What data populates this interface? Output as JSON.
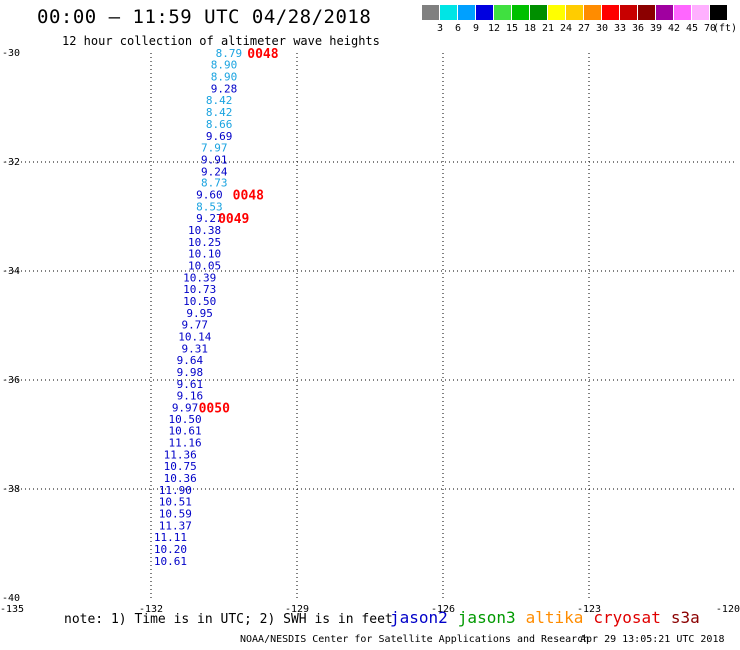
{
  "header": {
    "title": "00:00 – 11:59 UTC 04/28/2018",
    "subtitle": "12 hour collection of altimeter wave heights"
  },
  "color_scale": {
    "unit": "(ft)",
    "steps": [
      {
        "label": "3",
        "color": "#808080"
      },
      {
        "label": "6",
        "color": "#00e5e5"
      },
      {
        "label": "9",
        "color": "#00a0ff"
      },
      {
        "label": "12",
        "color": "#0000e0"
      },
      {
        "label": "15",
        "color": "#40e040"
      },
      {
        "label": "18",
        "color": "#00c000"
      },
      {
        "label": "21",
        "color": "#008f00"
      },
      {
        "label": "24",
        "color": "#ffff00"
      },
      {
        "label": "27",
        "color": "#ffcc00"
      },
      {
        "label": "30",
        "color": "#ff8c00"
      },
      {
        "label": "33",
        "color": "#ff0000"
      },
      {
        "label": "36",
        "color": "#c80000"
      },
      {
        "label": "39",
        "color": "#8b0000"
      },
      {
        "label": "42",
        "color": "#a000a0"
      },
      {
        "label": "45",
        "color": "#ff66ff"
      },
      {
        "label": "70",
        "color": "#ffb0ff"
      },
      {
        "label": "",
        "color": "#000000"
      }
    ]
  },
  "chart_data": {
    "type": "scatter",
    "title": "00:00 – 11:59 UTC 04/28/2018",
    "subtitle": "12 hour collection of altimeter wave heights",
    "x_ticks": [
      "-135",
      "-132",
      "-129",
      "-126",
      "-123",
      "-120"
    ],
    "y_ticks": [
      "-30",
      "-32",
      "-34",
      "-36",
      "-38",
      "-40"
    ],
    "xlim": [
      -135,
      -120
    ],
    "ylim": [
      -40,
      -30
    ],
    "grid": true,
    "colors": {
      "light": "#1aa3e0",
      "dark": "#0000c8",
      "time": "#ff0000"
    },
    "points": [
      {
        "lon": -130.4,
        "lat": -30.0,
        "value": "8.79",
        "band": "light"
      },
      {
        "lon": -130.5,
        "lat": -30.21,
        "value": "8.90",
        "band": "light"
      },
      {
        "lon": -130.5,
        "lat": -30.43,
        "value": "8.90",
        "band": "light"
      },
      {
        "lon": -130.5,
        "lat": -30.65,
        "value": "9.28",
        "band": "dark"
      },
      {
        "lon": -130.6,
        "lat": -30.86,
        "value": "8.42",
        "band": "light"
      },
      {
        "lon": -130.6,
        "lat": -31.08,
        "value": "8.42",
        "band": "light"
      },
      {
        "lon": -130.6,
        "lat": -31.3,
        "value": "8.66",
        "band": "light"
      },
      {
        "lon": -130.6,
        "lat": -31.52,
        "value": "9.69",
        "band": "dark"
      },
      {
        "lon": -130.7,
        "lat": -31.73,
        "value": "7.97",
        "band": "light"
      },
      {
        "lon": -130.7,
        "lat": -31.95,
        "value": "9.91",
        "band": "dark"
      },
      {
        "lon": -130.7,
        "lat": -32.17,
        "value": "9.24",
        "band": "dark"
      },
      {
        "lon": -130.7,
        "lat": -32.38,
        "value": "8.73",
        "band": "light"
      },
      {
        "lon": -130.8,
        "lat": -32.6,
        "value": "9.60",
        "band": "dark"
      },
      {
        "lon": -130.8,
        "lat": -32.82,
        "value": "8.53",
        "band": "light"
      },
      {
        "lon": -130.8,
        "lat": -33.03,
        "value": "9.27",
        "band": "dark"
      },
      {
        "lon": -130.9,
        "lat": -33.25,
        "value": "10.38",
        "band": "dark"
      },
      {
        "lon": -130.9,
        "lat": -33.47,
        "value": "10.25",
        "band": "dark"
      },
      {
        "lon": -130.9,
        "lat": -33.68,
        "value": "10.10",
        "band": "dark"
      },
      {
        "lon": -130.9,
        "lat": -33.9,
        "value": "10.05",
        "band": "dark"
      },
      {
        "lon": -131.0,
        "lat": -34.12,
        "value": "10.39",
        "band": "dark"
      },
      {
        "lon": -131.0,
        "lat": -34.33,
        "value": "10.73",
        "band": "dark"
      },
      {
        "lon": -131.0,
        "lat": -34.55,
        "value": "10.50",
        "band": "dark"
      },
      {
        "lon": -131.0,
        "lat": -34.77,
        "value": "9.95",
        "band": "dark"
      },
      {
        "lon": -131.1,
        "lat": -34.98,
        "value": "9.77",
        "band": "dark"
      },
      {
        "lon": -131.1,
        "lat": -35.2,
        "value": "10.14",
        "band": "dark"
      },
      {
        "lon": -131.1,
        "lat": -35.42,
        "value": "9.31",
        "band": "dark"
      },
      {
        "lon": -131.2,
        "lat": -35.63,
        "value": "9.64",
        "band": "dark"
      },
      {
        "lon": -131.2,
        "lat": -35.85,
        "value": "9.98",
        "band": "dark"
      },
      {
        "lon": -131.2,
        "lat": -36.07,
        "value": "9.61",
        "band": "dark"
      },
      {
        "lon": -131.2,
        "lat": -36.28,
        "value": "9.16",
        "band": "dark"
      },
      {
        "lon": -131.3,
        "lat": -36.5,
        "value": "9.97",
        "band": "dark"
      },
      {
        "lon": -131.3,
        "lat": -36.72,
        "value": "10.50",
        "band": "dark"
      },
      {
        "lon": -131.3,
        "lat": -36.93,
        "value": "10.61",
        "band": "dark"
      },
      {
        "lon": -131.3,
        "lat": -37.15,
        "value": "11.16",
        "band": "dark"
      },
      {
        "lon": -131.4,
        "lat": -37.37,
        "value": "11.36",
        "band": "dark"
      },
      {
        "lon": -131.4,
        "lat": -37.58,
        "value": "10.75",
        "band": "dark"
      },
      {
        "lon": -131.4,
        "lat": -37.8,
        "value": "10.36",
        "band": "dark"
      },
      {
        "lon": -131.5,
        "lat": -38.02,
        "value": "11.90",
        "band": "dark"
      },
      {
        "lon": -131.5,
        "lat": -38.23,
        "value": "10.51",
        "band": "dark"
      },
      {
        "lon": -131.5,
        "lat": -38.45,
        "value": "10.59",
        "band": "dark"
      },
      {
        "lon": -131.5,
        "lat": -38.67,
        "value": "11.37",
        "band": "dark"
      },
      {
        "lon": -131.6,
        "lat": -38.88,
        "value": "11.11",
        "band": "dark"
      },
      {
        "lon": -131.6,
        "lat": -39.1,
        "value": "10.20",
        "band": "dark"
      },
      {
        "lon": -131.6,
        "lat": -39.32,
        "value": "10.61",
        "band": "dark"
      }
    ],
    "time_labels": [
      {
        "lon": -129.7,
        "lat": -30.0,
        "text": "0048"
      },
      {
        "lon": -130.0,
        "lat": -32.6,
        "text": "0048"
      },
      {
        "lon": -130.3,
        "lat": -33.03,
        "text": "0049"
      },
      {
        "lon": -130.7,
        "lat": -36.5,
        "text": "0050"
      }
    ]
  },
  "note": "note: 1) Time is in UTC; 2) SWH is in feet",
  "legend": [
    {
      "name": "jason2",
      "color": "#0000c8"
    },
    {
      "name": "jason3",
      "color": "#009900"
    },
    {
      "name": "altika",
      "color": "#ff8c00"
    },
    {
      "name": "cryosat",
      "color": "#e00000"
    },
    {
      "name": "s3a",
      "color": "#8b0000"
    }
  ],
  "footer": {
    "credit": "NOAA/NESDIS Center for Satellite Applications and Research",
    "timestamp": "Apr 29 13:05:21 UTC 2018"
  }
}
